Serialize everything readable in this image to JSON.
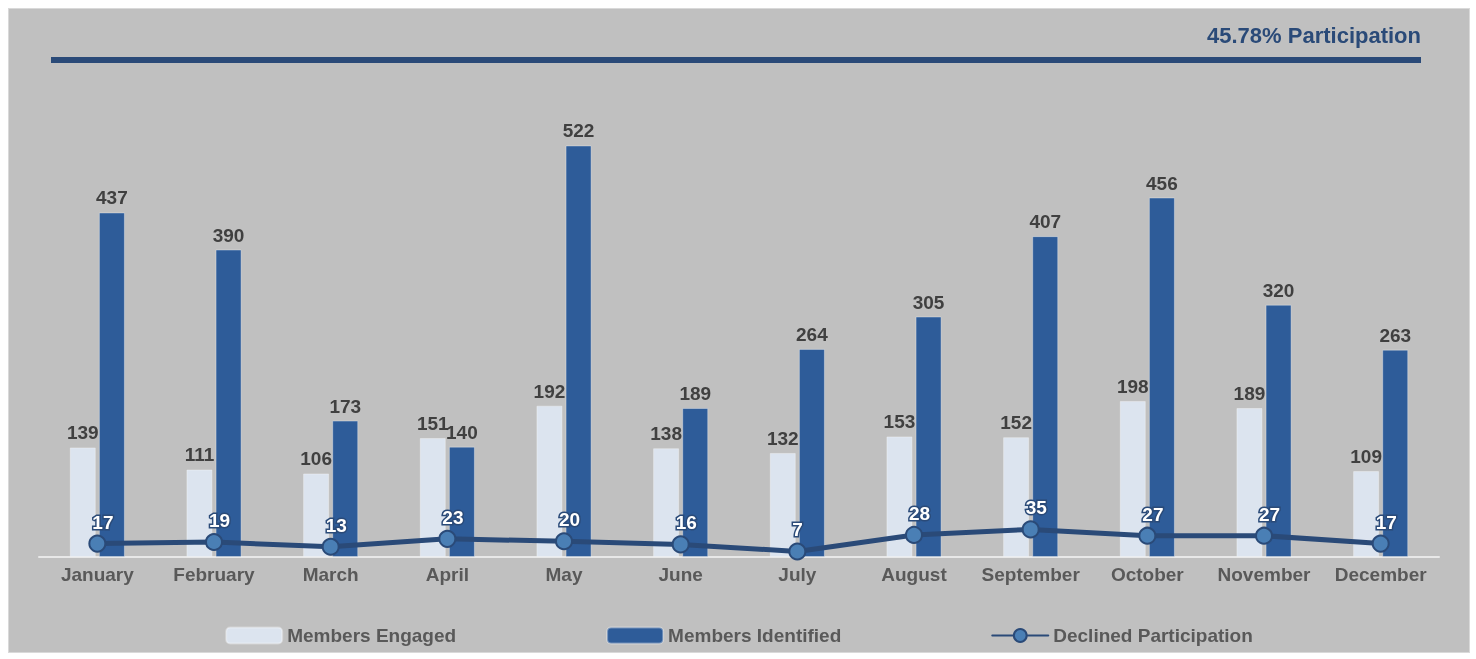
{
  "chart_data": {
    "type": "bar",
    "title": "45.78% Participation",
    "categories": [
      "January",
      "February",
      "March",
      "April",
      "May",
      "June",
      "July",
      "August",
      "September",
      "October",
      "November",
      "December"
    ],
    "series": [
      {
        "name": "Members Engaged",
        "color": "#dce4ef",
        "values": [
          139,
          111,
          106,
          151,
          192,
          138,
          132,
          153,
          152,
          198,
          189,
          109
        ]
      },
      {
        "name": "Members Identified",
        "color": "#2e5c99",
        "values": [
          437,
          390,
          173,
          140,
          522,
          189,
          264,
          305,
          407,
          456,
          320,
          263
        ]
      },
      {
        "name": "Declined Participation",
        "type": "line",
        "color": "#2a4a78",
        "values": [
          17,
          19,
          13,
          23,
          20,
          16,
          7,
          28,
          35,
          27,
          27,
          17
        ]
      }
    ],
    "data_labels": true,
    "legend": "bottom",
    "marker": "circle",
    "line_style": "solid"
  }
}
